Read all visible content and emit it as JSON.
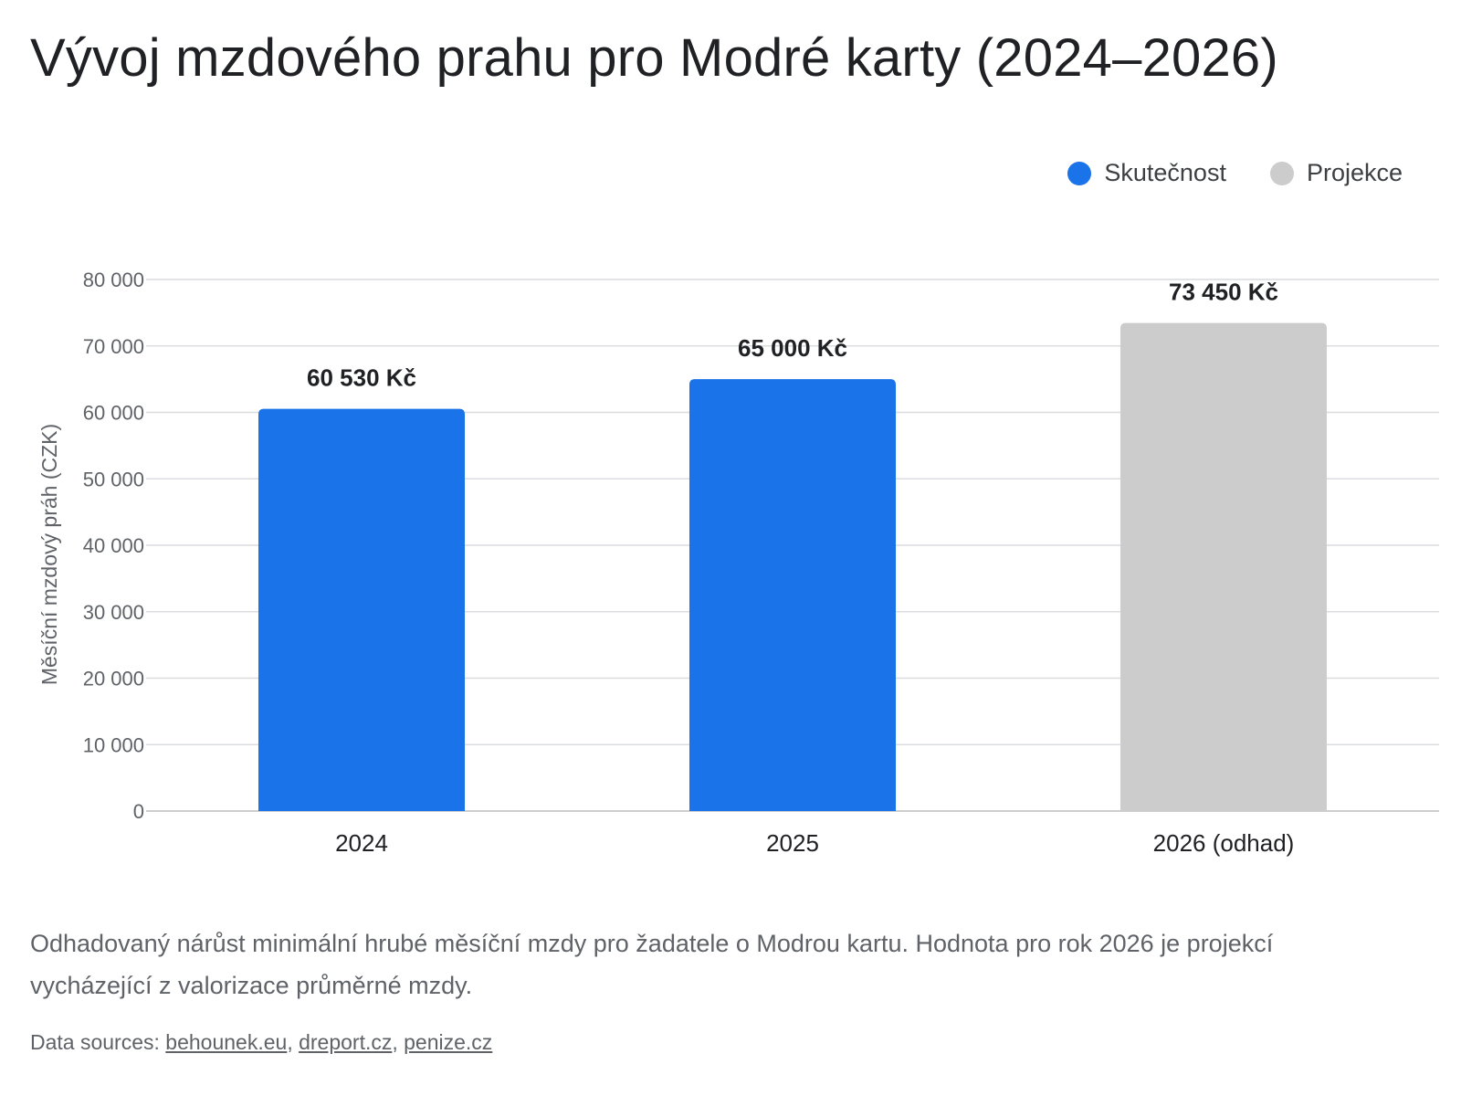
{
  "title": "Vývoj mzdového prahu pro Modré karty (2024–2026)",
  "legend": [
    {
      "label": "Skutečnost",
      "color": "#1a73e8"
    },
    {
      "label": "Projekce",
      "color": "#cccccc"
    }
  ],
  "chart_data": {
    "type": "bar",
    "title": "Vývoj mzdového prahu pro Modré karty (2024–2026)",
    "ylabel": "Měsíční mzdový práh (CZK)",
    "xlabel": "",
    "categories": [
      "2024",
      "2025",
      "2026 (odhad)"
    ],
    "values": [
      60530,
      65000,
      73450
    ],
    "value_labels": [
      "60 530 Kč",
      "65 000 Kč",
      "73 450 Kč"
    ],
    "bar_colors": [
      "#1a73e8",
      "#1a73e8",
      "#cccccc"
    ],
    "ylim": [
      0,
      80000
    ],
    "yticks": [
      0,
      10000,
      20000,
      30000,
      40000,
      50000,
      60000,
      70000,
      80000
    ],
    "ytick_labels": [
      "0",
      "10 000",
      "20 000",
      "30 000",
      "40 000",
      "50 000",
      "60 000",
      "70 000",
      "80 000"
    ],
    "grid": true,
    "legend_position": "top-right"
  },
  "caption": "Odhadovaný nárůst minimální hrubé měsíční mzdy pro žadatele o Modrou kartu. Hodnota pro rok 2026 je projekcí vycházející z valorizace průměrné mzdy.",
  "sources": {
    "prefix": "Data sources: ",
    "links": [
      "behounek.eu",
      "dreport.cz",
      "penize.cz"
    ],
    "separator": ", "
  }
}
